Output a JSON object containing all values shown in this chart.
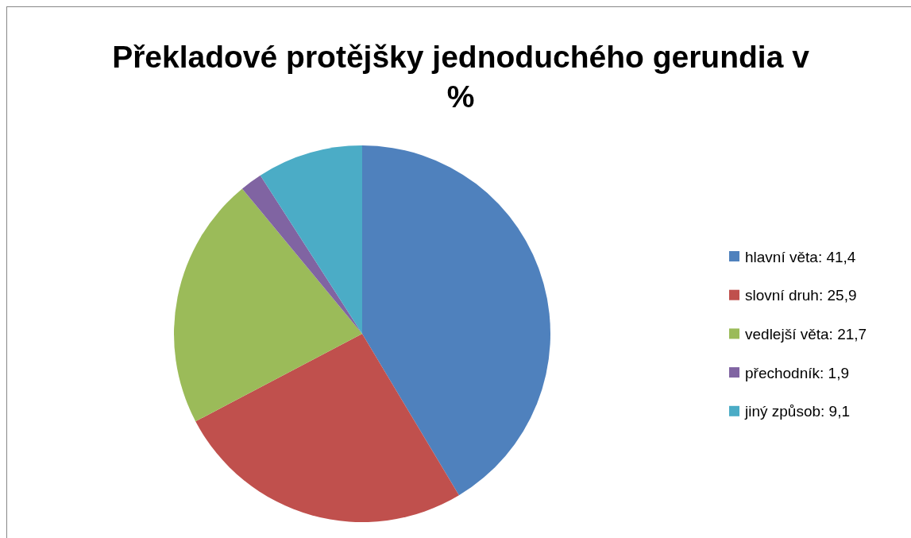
{
  "chart_data": {
    "type": "pie",
    "title": "Překladové protějšky jednoduchého gerundia v %",
    "categories": [
      "hlavní věta: 41,4",
      "slovní druh: 25,9",
      "vedlejší věta: 21,7",
      "přechodník: 1,9",
      "jiný způsob: 9,1"
    ],
    "values": [
      41.4,
      25.9,
      21.7,
      1.9,
      9.1
    ],
    "colors": [
      "#4f81bd",
      "#c0504d",
      "#9bbb59",
      "#8064a2",
      "#4bacc6"
    ],
    "legend": "right"
  }
}
